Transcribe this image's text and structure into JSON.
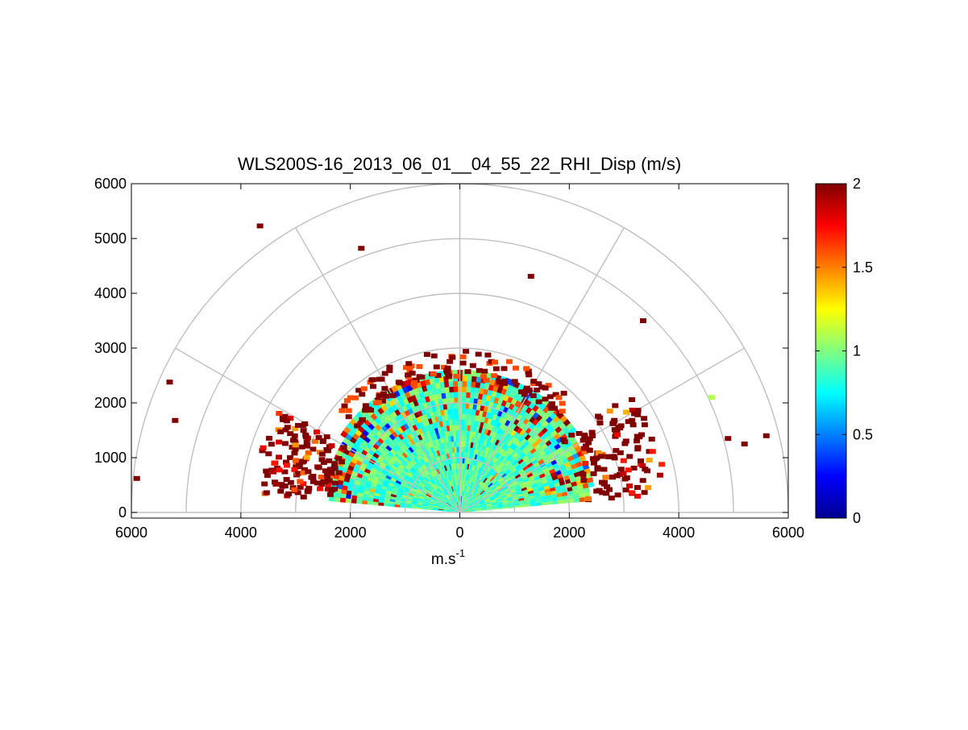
{
  "chart_data": {
    "type": "heatmap",
    "subtype": "polar-rhi-sector",
    "title": "WLS200S-16_2013_06_01__04_55_22_RHI_Disp (m/s)",
    "xlabel_base": "m.s",
    "xlabel_exp": "-1",
    "ylabel": "",
    "xlim": [
      -6000,
      6000
    ],
    "ylim": [
      0,
      6000
    ],
    "x_ticks": [
      -6000,
      -4000,
      -2000,
      0,
      2000,
      4000,
      6000
    ],
    "x_tick_labels": [
      "6000",
      "4000",
      "2000",
      "0",
      "2000",
      "4000",
      "6000"
    ],
    "y_ticks": [
      0,
      1000,
      2000,
      3000,
      4000,
      5000,
      6000
    ],
    "y_tick_labels": [
      "0",
      "1000",
      "2000",
      "3000",
      "4000",
      "5000",
      "6000"
    ],
    "polar_grid": {
      "radii": [
        1000,
        2000,
        3000,
        4000,
        5000,
        6000
      ],
      "angles_deg": [
        0,
        30,
        60,
        90,
        120,
        150,
        180
      ]
    },
    "colorbar": {
      "colormap": "jet",
      "range": [
        0,
        2
      ],
      "ticks": [
        0,
        0.5,
        1,
        1.5,
        2
      ],
      "tick_labels": [
        "0",
        "0.5",
        "1",
        "1.5",
        "2"
      ]
    },
    "scan": {
      "elevation_range_deg": [
        5,
        175
      ],
      "range_gate_m": 100,
      "max_range_m": 2600,
      "beam_step_deg": 2,
      "typical_value": 0.9
    },
    "outliers": [
      {
        "x": -5900,
        "y": 620,
        "value": 2
      },
      {
        "x": -5300,
        "y": 2380,
        "value": 2
      },
      {
        "x": -5200,
        "y": 1680,
        "value": 2
      },
      {
        "x": -3650,
        "y": 5230,
        "value": 2
      },
      {
        "x": -1800,
        "y": 4820,
        "value": 2
      },
      {
        "x": 1300,
        "y": 4310,
        "value": 2
      },
      {
        "x": 3350,
        "y": 3500,
        "value": 2
      },
      {
        "x": 4600,
        "y": 2100,
        "value": 1.1
      },
      {
        "x": 4900,
        "y": 1350,
        "value": 2
      },
      {
        "x": 5200,
        "y": 1250,
        "value": 2
      },
      {
        "x": 5600,
        "y": 1400,
        "value": 2
      }
    ]
  }
}
